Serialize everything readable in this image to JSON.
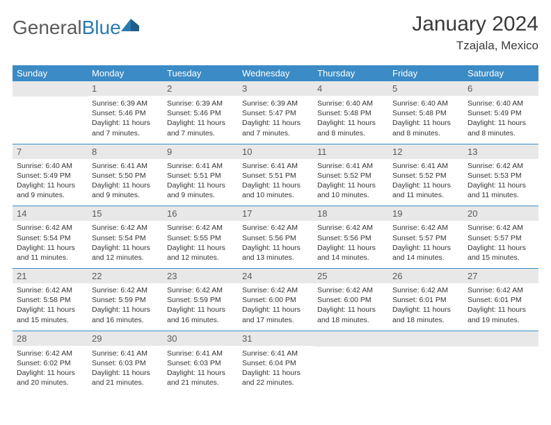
{
  "brand": {
    "part1": "General",
    "part2": "Blue"
  },
  "title": "January 2024",
  "location": "Tzajala, Mexico",
  "colors": {
    "header_bg": "#3b8bc6",
    "header_fg": "#ffffff",
    "daynum_bg": "#e8e8e8",
    "daynum_fg": "#5a5a5a",
    "text": "#333333",
    "rule": "#3b8bc6",
    "logo_gray": "#5a5a5a",
    "logo_blue": "#2a7ab0"
  },
  "day_headers": [
    "Sunday",
    "Monday",
    "Tuesday",
    "Wednesday",
    "Thursday",
    "Friday",
    "Saturday"
  ],
  "weeks": [
    [
      {
        "n": "",
        "l1": "",
        "l2": "",
        "l3": "",
        "l4": ""
      },
      {
        "n": "1",
        "l1": "Sunrise: 6:39 AM",
        "l2": "Sunset: 5:46 PM",
        "l3": "Daylight: 11 hours",
        "l4": "and 7 minutes."
      },
      {
        "n": "2",
        "l1": "Sunrise: 6:39 AM",
        "l2": "Sunset: 5:46 PM",
        "l3": "Daylight: 11 hours",
        "l4": "and 7 minutes."
      },
      {
        "n": "3",
        "l1": "Sunrise: 6:39 AM",
        "l2": "Sunset: 5:47 PM",
        "l3": "Daylight: 11 hours",
        "l4": "and 7 minutes."
      },
      {
        "n": "4",
        "l1": "Sunrise: 6:40 AM",
        "l2": "Sunset: 5:48 PM",
        "l3": "Daylight: 11 hours",
        "l4": "and 8 minutes."
      },
      {
        "n": "5",
        "l1": "Sunrise: 6:40 AM",
        "l2": "Sunset: 5:48 PM",
        "l3": "Daylight: 11 hours",
        "l4": "and 8 minutes."
      },
      {
        "n": "6",
        "l1": "Sunrise: 6:40 AM",
        "l2": "Sunset: 5:49 PM",
        "l3": "Daylight: 11 hours",
        "l4": "and 8 minutes."
      }
    ],
    [
      {
        "n": "7",
        "l1": "Sunrise: 6:40 AM",
        "l2": "Sunset: 5:49 PM",
        "l3": "Daylight: 11 hours",
        "l4": "and 9 minutes."
      },
      {
        "n": "8",
        "l1": "Sunrise: 6:41 AM",
        "l2": "Sunset: 5:50 PM",
        "l3": "Daylight: 11 hours",
        "l4": "and 9 minutes."
      },
      {
        "n": "9",
        "l1": "Sunrise: 6:41 AM",
        "l2": "Sunset: 5:51 PM",
        "l3": "Daylight: 11 hours",
        "l4": "and 9 minutes."
      },
      {
        "n": "10",
        "l1": "Sunrise: 6:41 AM",
        "l2": "Sunset: 5:51 PM",
        "l3": "Daylight: 11 hours",
        "l4": "and 10 minutes."
      },
      {
        "n": "11",
        "l1": "Sunrise: 6:41 AM",
        "l2": "Sunset: 5:52 PM",
        "l3": "Daylight: 11 hours",
        "l4": "and 10 minutes."
      },
      {
        "n": "12",
        "l1": "Sunrise: 6:41 AM",
        "l2": "Sunset: 5:52 PM",
        "l3": "Daylight: 11 hours",
        "l4": "and 11 minutes."
      },
      {
        "n": "13",
        "l1": "Sunrise: 6:42 AM",
        "l2": "Sunset: 5:53 PM",
        "l3": "Daylight: 11 hours",
        "l4": "and 11 minutes."
      }
    ],
    [
      {
        "n": "14",
        "l1": "Sunrise: 6:42 AM",
        "l2": "Sunset: 5:54 PM",
        "l3": "Daylight: 11 hours",
        "l4": "and 11 minutes."
      },
      {
        "n": "15",
        "l1": "Sunrise: 6:42 AM",
        "l2": "Sunset: 5:54 PM",
        "l3": "Daylight: 11 hours",
        "l4": "and 12 minutes."
      },
      {
        "n": "16",
        "l1": "Sunrise: 6:42 AM",
        "l2": "Sunset: 5:55 PM",
        "l3": "Daylight: 11 hours",
        "l4": "and 12 minutes."
      },
      {
        "n": "17",
        "l1": "Sunrise: 6:42 AM",
        "l2": "Sunset: 5:56 PM",
        "l3": "Daylight: 11 hours",
        "l4": "and 13 minutes."
      },
      {
        "n": "18",
        "l1": "Sunrise: 6:42 AM",
        "l2": "Sunset: 5:56 PM",
        "l3": "Daylight: 11 hours",
        "l4": "and 14 minutes."
      },
      {
        "n": "19",
        "l1": "Sunrise: 6:42 AM",
        "l2": "Sunset: 5:57 PM",
        "l3": "Daylight: 11 hours",
        "l4": "and 14 minutes."
      },
      {
        "n": "20",
        "l1": "Sunrise: 6:42 AM",
        "l2": "Sunset: 5:57 PM",
        "l3": "Daylight: 11 hours",
        "l4": "and 15 minutes."
      }
    ],
    [
      {
        "n": "21",
        "l1": "Sunrise: 6:42 AM",
        "l2": "Sunset: 5:58 PM",
        "l3": "Daylight: 11 hours",
        "l4": "and 15 minutes."
      },
      {
        "n": "22",
        "l1": "Sunrise: 6:42 AM",
        "l2": "Sunset: 5:59 PM",
        "l3": "Daylight: 11 hours",
        "l4": "and 16 minutes."
      },
      {
        "n": "23",
        "l1": "Sunrise: 6:42 AM",
        "l2": "Sunset: 5:59 PM",
        "l3": "Daylight: 11 hours",
        "l4": "and 16 minutes."
      },
      {
        "n": "24",
        "l1": "Sunrise: 6:42 AM",
        "l2": "Sunset: 6:00 PM",
        "l3": "Daylight: 11 hours",
        "l4": "and 17 minutes."
      },
      {
        "n": "25",
        "l1": "Sunrise: 6:42 AM",
        "l2": "Sunset: 6:00 PM",
        "l3": "Daylight: 11 hours",
        "l4": "and 18 minutes."
      },
      {
        "n": "26",
        "l1": "Sunrise: 6:42 AM",
        "l2": "Sunset: 6:01 PM",
        "l3": "Daylight: 11 hours",
        "l4": "and 18 minutes."
      },
      {
        "n": "27",
        "l1": "Sunrise: 6:42 AM",
        "l2": "Sunset: 6:01 PM",
        "l3": "Daylight: 11 hours",
        "l4": "and 19 minutes."
      }
    ],
    [
      {
        "n": "28",
        "l1": "Sunrise: 6:42 AM",
        "l2": "Sunset: 6:02 PM",
        "l3": "Daylight: 11 hours",
        "l4": "and 20 minutes."
      },
      {
        "n": "29",
        "l1": "Sunrise: 6:41 AM",
        "l2": "Sunset: 6:03 PM",
        "l3": "Daylight: 11 hours",
        "l4": "and 21 minutes."
      },
      {
        "n": "30",
        "l1": "Sunrise: 6:41 AM",
        "l2": "Sunset: 6:03 PM",
        "l3": "Daylight: 11 hours",
        "l4": "and 21 minutes."
      },
      {
        "n": "31",
        "l1": "Sunrise: 6:41 AM",
        "l2": "Sunset: 6:04 PM",
        "l3": "Daylight: 11 hours",
        "l4": "and 22 minutes."
      },
      {
        "n": "",
        "l1": "",
        "l2": "",
        "l3": "",
        "l4": ""
      },
      {
        "n": "",
        "l1": "",
        "l2": "",
        "l3": "",
        "l4": ""
      },
      {
        "n": "",
        "l1": "",
        "l2": "",
        "l3": "",
        "l4": ""
      }
    ]
  ]
}
